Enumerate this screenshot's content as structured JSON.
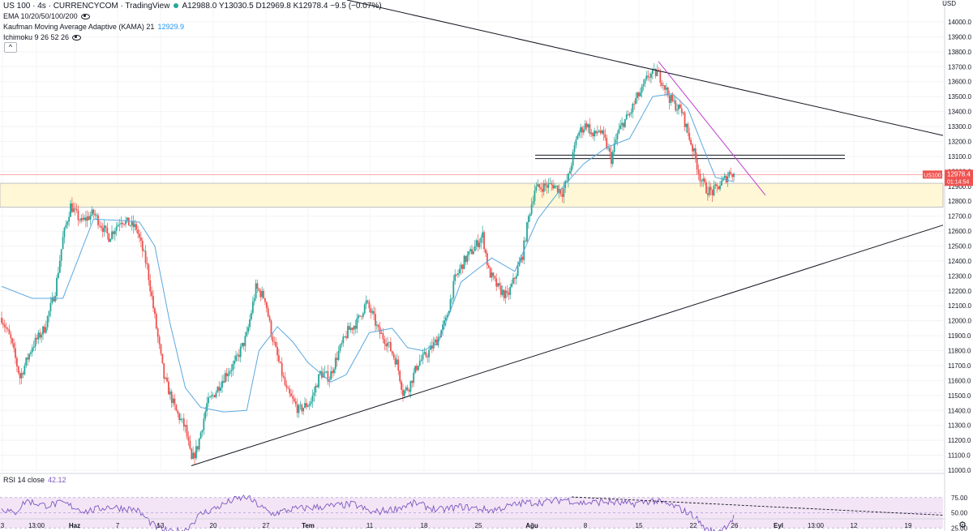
{
  "legend": {
    "symbol": "US 100 · 4s · CURRENCYCOM · TradingView",
    "ohlc": "A12988.0 Y13030.5 D12969.8 K12978.4 −9.5 (−0.07%)",
    "ema": "EMA 10/20/50/100/200",
    "kama_label": "Kaufman Moving Average Adaptive (KAMA) 21",
    "kama_value": "12929.9",
    "ichimoku": "Ichimoku 9 26 52 26",
    "collapse": "^"
  },
  "rsi": {
    "label": "RSI 14 close",
    "value": "42.12",
    "levels": [
      75,
      50,
      25
    ],
    "level_labels": [
      "75.00",
      "50.00",
      "25.00"
    ]
  },
  "price_tag": {
    "symbol": "US100",
    "price": "12978.4",
    "countdown": "01:14:54"
  },
  "y_axis": {
    "currency": "USD",
    "ticks": [
      "14000.0",
      "13900.0",
      "13800.0",
      "13700.0",
      "13600.0",
      "13500.0",
      "13400.0",
      "13300.0",
      "13200.0",
      "13100.0",
      "13000.0",
      "12900.0",
      "12800.0",
      "12700.0",
      "12600.0",
      "12500.0",
      "12400.0",
      "12300.0",
      "12200.0",
      "12100.0",
      "12000.0",
      "11900.0",
      "11800.0",
      "11700.0",
      "11600.0",
      "11500.0",
      "11400.0",
      "11300.0",
      "11200.0",
      "11100.0",
      "11000.0"
    ]
  },
  "x_axis": {
    "ticks": [
      "3",
      "13:00",
      "Haz",
      "7",
      "13",
      "20",
      "27",
      "Tem",
      "11",
      "18",
      "25",
      "Ağu",
      "8",
      "15",
      "22",
      "26",
      "Eyl",
      "13:00",
      "12",
      "19"
    ]
  },
  "colors": {
    "up": "#26a69a",
    "down": "#ef5350",
    "kama": "#5aa8e0",
    "zone_fill": "#fff7d6",
    "trend": "#131722",
    "magenta": "#c23bd4",
    "rsi_line": "#7e57c2",
    "rsi_fill": "#f3e5f5",
    "tag": "#ef5350"
  },
  "chart_data": {
    "type": "candlestick",
    "y_range": [
      11000,
      14000
    ],
    "price_keypoints": [
      [
        0,
        12020
      ],
      [
        6,
        11870
      ],
      [
        12,
        11620
      ],
      [
        20,
        11830
      ],
      [
        28,
        11950
      ],
      [
        35,
        12200
      ],
      [
        40,
        12550
      ],
      [
        45,
        12770
      ],
      [
        52,
        12660
      ],
      [
        60,
        12720
      ],
      [
        70,
        12560
      ],
      [
        78,
        12680
      ],
      [
        88,
        12620
      ],
      [
        95,
        12360
      ],
      [
        100,
        12020
      ],
      [
        106,
        11620
      ],
      [
        114,
        11390
      ],
      [
        120,
        11280
      ],
      [
        124,
        11060
      ],
      [
        128,
        11160
      ],
      [
        134,
        11440
      ],
      [
        140,
        11530
      ],
      [
        146,
        11640
      ],
      [
        152,
        11710
      ],
      [
        160,
        11900
      ],
      [
        166,
        12220
      ],
      [
        172,
        12150
      ],
      [
        176,
        11920
      ],
      [
        180,
        11760
      ],
      [
        186,
        11530
      ],
      [
        194,
        11400
      ],
      [
        202,
        11460
      ],
      [
        208,
        11650
      ],
      [
        214,
        11620
      ],
      [
        220,
        11790
      ],
      [
        226,
        11930
      ],
      [
        232,
        11990
      ],
      [
        238,
        12120
      ],
      [
        242,
        12040
      ],
      [
        246,
        11930
      ],
      [
        252,
        11850
      ],
      [
        258,
        11720
      ],
      [
        262,
        11520
      ],
      [
        266,
        11560
      ],
      [
        272,
        11720
      ],
      [
        278,
        11780
      ],
      [
        284,
        11870
      ],
      [
        290,
        12000
      ],
      [
        296,
        12280
      ],
      [
        302,
        12400
      ],
      [
        308,
        12480
      ],
      [
        314,
        12570
      ],
      [
        318,
        12330
      ],
      [
        324,
        12220
      ],
      [
        330,
        12160
      ],
      [
        334,
        12260
      ],
      [
        340,
        12440
      ],
      [
        344,
        12690
      ],
      [
        348,
        12880
      ],
      [
        354,
        12900
      ],
      [
        360,
        12910
      ],
      [
        366,
        12860
      ],
      [
        370,
        12960
      ],
      [
        376,
        13250
      ],
      [
        382,
        13320
      ],
      [
        386,
        13230
      ],
      [
        390,
        13280
      ],
      [
        394,
        13200
      ],
      [
        398,
        13080
      ],
      [
        402,
        13250
      ],
      [
        406,
        13330
      ],
      [
        410,
        13380
      ],
      [
        414,
        13480
      ],
      [
        418,
        13540
      ],
      [
        422,
        13640
      ],
      [
        428,
        13660
      ],
      [
        432,
        13590
      ],
      [
        436,
        13490
      ],
      [
        440,
        13440
      ],
      [
        444,
        13400
      ],
      [
        448,
        13260
      ],
      [
        452,
        13120
      ],
      [
        456,
        12960
      ],
      [
        460,
        12880
      ],
      [
        464,
        12860
      ],
      [
        468,
        12900
      ],
      [
        473,
        12960
      ],
      [
        476,
        13000
      ],
      [
        478,
        12978
      ]
    ],
    "kama_keypoints": [
      [
        0,
        12230
      ],
      [
        20,
        12150
      ],
      [
        40,
        12150
      ],
      [
        60,
        12680
      ],
      [
        80,
        12670
      ],
      [
        90,
        12660
      ],
      [
        100,
        12500
      ],
      [
        110,
        11980
      ],
      [
        120,
        11550
      ],
      [
        130,
        11420
      ],
      [
        145,
        11390
      ],
      [
        160,
        11400
      ],
      [
        168,
        11800
      ],
      [
        180,
        11960
      ],
      [
        190,
        11860
      ],
      [
        200,
        11720
      ],
      [
        215,
        11590
      ],
      [
        225,
        11640
      ],
      [
        240,
        11920
      ],
      [
        255,
        11950
      ],
      [
        265,
        11820
      ],
      [
        275,
        11800
      ],
      [
        285,
        11850
      ],
      [
        300,
        12260
      ],
      [
        320,
        12420
      ],
      [
        335,
        12330
      ],
      [
        350,
        12680
      ],
      [
        365,
        12880
      ],
      [
        380,
        13050
      ],
      [
        395,
        13160
      ],
      [
        410,
        13220
      ],
      [
        425,
        13500
      ],
      [
        438,
        13520
      ],
      [
        448,
        13420
      ],
      [
        458,
        13160
      ],
      [
        466,
        12960
      ],
      [
        478,
        12930
      ]
    ],
    "rsi_keypoints": [
      [
        0,
        58
      ],
      [
        8,
        48
      ],
      [
        16,
        70
      ],
      [
        28,
        62
      ],
      [
        40,
        66
      ],
      [
        55,
        52
      ],
      [
        70,
        60
      ],
      [
        88,
        55
      ],
      [
        100,
        28
      ],
      [
        110,
        18
      ],
      [
        120,
        22
      ],
      [
        130,
        48
      ],
      [
        140,
        58
      ],
      [
        150,
        70
      ],
      [
        160,
        76
      ],
      [
        168,
        62
      ],
      [
        176,
        48
      ],
      [
        190,
        56
      ],
      [
        210,
        60
      ],
      [
        230,
        64
      ],
      [
        242,
        50
      ],
      [
        256,
        56
      ],
      [
        270,
        66
      ],
      [
        285,
        54
      ],
      [
        300,
        60
      ],
      [
        320,
        54
      ],
      [
        340,
        66
      ],
      [
        356,
        68
      ],
      [
        368,
        72
      ],
      [
        378,
        66
      ],
      [
        395,
        68
      ],
      [
        410,
        64
      ],
      [
        425,
        70
      ],
      [
        440,
        60
      ],
      [
        452,
        45
      ],
      [
        460,
        22
      ],
      [
        466,
        18
      ],
      [
        472,
        26
      ],
      [
        478,
        42
      ]
    ],
    "horizontal_levels": [
      {
        "price": 12978.4,
        "style": "current-price"
      },
      {
        "price": 13108,
        "style": "resistance"
      },
      {
        "price": 13085,
        "style": "resistance"
      }
    ],
    "zone": {
      "from": 12760,
      "to": 12920
    },
    "trendlines": [
      {
        "from": {
          "date": "Haz 18",
          "price": 11030
        },
        "to": {
          "date": "Eyl 19+",
          "price": 12640
        },
        "kind": "rising-support"
      },
      {
        "from": {
          "date": "Haz 13",
          "price": 14040
        },
        "to": {
          "date": "Eyl 19+",
          "price": 13220
        },
        "kind": "falling-resistance"
      },
      {
        "from": {
          "date": "Ağu 16",
          "price": 13730
        },
        "to": {
          "date": "Ağu 27",
          "price": 12840
        },
        "kind": "magenta-trend"
      },
      {
        "from": {
          "date": "Ağu 11",
          "price": 75
        },
        "to": {
          "date": "Eyl 19+",
          "price": 45
        },
        "kind": "rsi-dashed"
      }
    ]
  }
}
